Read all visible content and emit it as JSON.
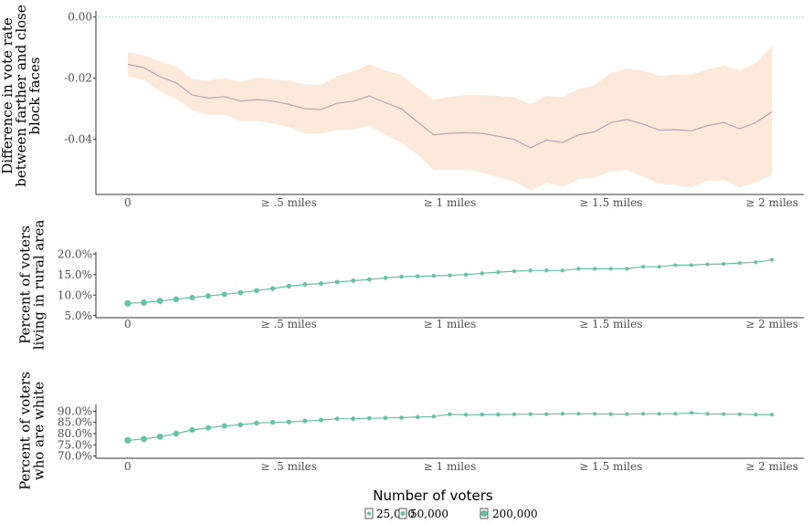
{
  "chart_data": [
    {
      "type": "area",
      "ylabel_lines": [
        "Difference in vote rate",
        "between farther and close",
        "block faces"
      ],
      "xlim": [
        0,
        40
      ],
      "ylim": [
        -0.058,
        0.002
      ],
      "y_ticks": [
        0.0,
        -0.02,
        -0.04
      ],
      "y_tick_labels": [
        "0.00",
        "-0.02",
        "-0.04"
      ],
      "x_ticks": [
        0,
        10,
        20,
        30,
        40
      ],
      "x_tick_labels": [
        "0",
        "≥ .5 miles",
        "≥ 1 miles",
        "≥ 1.5 miles",
        "≥ 2 miles"
      ],
      "reference_line": 0.0,
      "colors": {
        "line": "#b9a2b4",
        "band": "#fce9d9",
        "reference": "#8fd0c4"
      },
      "x": [
        0,
        1,
        2,
        3,
        4,
        5,
        6,
        7,
        8,
        9,
        10,
        11,
        12,
        13,
        14,
        15,
        16,
        17,
        18,
        19,
        20,
        21,
        22,
        23,
        24,
        25,
        26,
        27,
        28,
        29,
        30,
        31,
        32,
        33,
        34,
        35,
        36,
        37,
        38,
        39,
        40
      ],
      "estimate": [
        -0.0155,
        -0.0165,
        -0.0195,
        -0.0215,
        -0.0255,
        -0.0265,
        -0.026,
        -0.0275,
        -0.027,
        -0.0275,
        -0.0285,
        -0.03,
        -0.0302,
        -0.0282,
        -0.0275,
        -0.0258,
        -0.028,
        -0.03,
        -0.0343,
        -0.0385,
        -0.038,
        -0.0378,
        -0.038,
        -0.039,
        -0.04,
        -0.0428,
        -0.0402,
        -0.041,
        -0.0385,
        -0.0375,
        -0.0345,
        -0.0335,
        -0.035,
        -0.037,
        -0.0368,
        -0.0372,
        -0.0355,
        -0.0345,
        -0.0365,
        -0.0345,
        -0.031
      ],
      "lower": [
        -0.0195,
        -0.0205,
        -0.0245,
        -0.0268,
        -0.0305,
        -0.032,
        -0.0318,
        -0.034,
        -0.034,
        -0.0348,
        -0.036,
        -0.038,
        -0.0382,
        -0.037,
        -0.0368,
        -0.0355,
        -0.0385,
        -0.041,
        -0.045,
        -0.05,
        -0.05,
        -0.05,
        -0.0508,
        -0.0525,
        -0.0538,
        -0.0568,
        -0.0542,
        -0.0555,
        -0.053,
        -0.0525,
        -0.0505,
        -0.05,
        -0.0522,
        -0.0545,
        -0.055,
        -0.0558,
        -0.0535,
        -0.0532,
        -0.0558,
        -0.054,
        -0.0515
      ],
      "upper": [
        -0.0115,
        -0.0125,
        -0.0145,
        -0.0162,
        -0.0202,
        -0.0208,
        -0.0198,
        -0.0212,
        -0.0198,
        -0.0202,
        -0.0208,
        -0.022,
        -0.0222,
        -0.0192,
        -0.0178,
        -0.0155,
        -0.0175,
        -0.019,
        -0.0232,
        -0.027,
        -0.026,
        -0.0255,
        -0.0255,
        -0.0258,
        -0.0262,
        -0.0285,
        -0.0258,
        -0.0262,
        -0.0235,
        -0.0222,
        -0.0182,
        -0.0168,
        -0.0175,
        -0.0192,
        -0.0188,
        -0.0188,
        -0.0172,
        -0.0158,
        -0.0175,
        -0.015,
        -0.0095
      ]
    },
    {
      "type": "line",
      "ylabel_lines": [
        "Percent of voters",
        "living in rural area"
      ],
      "xlim": [
        0,
        40
      ],
      "ylim": [
        4.5,
        20.5
      ],
      "y_ticks": [
        5,
        10,
        15,
        20
      ],
      "y_tick_labels": [
        "5.0%",
        "10.0%",
        "15.0%",
        "20.0%"
      ],
      "x_ticks": [
        0,
        10,
        20,
        30,
        40
      ],
      "x_tick_labels": [
        "0",
        "≥ .5 miles",
        "≥ 1 miles",
        "≥ 1.5 miles",
        "≥ 2 miles"
      ],
      "colors": {
        "line": "#66c2a5"
      },
      "x": [
        0,
        1,
        2,
        3,
        4,
        5,
        6,
        7,
        8,
        9,
        10,
        11,
        12,
        13,
        14,
        15,
        16,
        17,
        18,
        19,
        20,
        21,
        22,
        23,
        24,
        25,
        26,
        27,
        28,
        29,
        30,
        31,
        32,
        33,
        34,
        35,
        36,
        37,
        38,
        39,
        40
      ],
      "values": [
        8.0,
        8.2,
        8.6,
        9.0,
        9.4,
        9.8,
        10.2,
        10.6,
        11.1,
        11.6,
        12.2,
        12.6,
        12.8,
        13.2,
        13.5,
        13.8,
        14.2,
        14.5,
        14.6,
        14.7,
        14.8,
        15.0,
        15.3,
        15.6,
        15.8,
        16.0,
        16.0,
        16.0,
        16.4,
        16.4,
        16.4,
        16.4,
        16.9,
        16.9,
        17.3,
        17.3,
        17.5,
        17.6,
        17.8,
        18.0,
        18.6
      ],
      "voters": [
        200000,
        180000,
        160000,
        140000,
        120000,
        110000,
        100000,
        90000,
        80000,
        72000,
        65000,
        60000,
        55000,
        50000,
        46000,
        43000,
        40000,
        38000,
        36000,
        34000,
        32000,
        31000,
        30000,
        29000,
        28000,
        27000,
        26000,
        25500,
        25000,
        24500,
        24000,
        23500,
        23000,
        22500,
        22000,
        21500,
        21000,
        20500,
        20000,
        19500,
        19000
      ]
    },
    {
      "type": "line",
      "ylabel_lines": [
        "Percent of voters",
        "who are white"
      ],
      "xlim": [
        0,
        40
      ],
      "ylim": [
        69,
        93
      ],
      "y_ticks": [
        70,
        75,
        80,
        85,
        90
      ],
      "y_tick_labels": [
        "70.0%",
        "75.0%",
        "80.0%",
        "85.0%",
        "90.0%"
      ],
      "x_ticks": [
        0,
        10,
        20,
        30,
        40
      ],
      "x_tick_labels": [
        "0",
        "≥ .5 miles",
        "≥ 1 miles",
        "≥ 1.5 miles",
        "≥ 2 miles"
      ],
      "colors": {
        "line": "#66c2a5"
      },
      "x": [
        0,
        1,
        2,
        3,
        4,
        5,
        6,
        7,
        8,
        9,
        10,
        11,
        12,
        13,
        14,
        15,
        16,
        17,
        18,
        19,
        20,
        21,
        22,
        23,
        24,
        25,
        26,
        27,
        28,
        29,
        30,
        31,
        32,
        33,
        34,
        35,
        36,
        37,
        38,
        39,
        40
      ],
      "values": [
        77.0,
        77.6,
        78.6,
        80.0,
        81.6,
        82.6,
        83.4,
        83.9,
        84.7,
        85.0,
        85.2,
        85.6,
        86.0,
        86.6,
        86.6,
        86.8,
        87.0,
        87.1,
        87.4,
        87.6,
        88.6,
        88.4,
        88.5,
        88.5,
        88.6,
        88.7,
        88.7,
        88.8,
        88.8,
        88.8,
        88.7,
        88.7,
        88.8,
        88.8,
        88.8,
        89.2,
        88.8,
        88.7,
        88.6,
        88.5,
        88.5
      ],
      "voters": [
        200000,
        180000,
        160000,
        140000,
        120000,
        110000,
        100000,
        90000,
        80000,
        72000,
        65000,
        60000,
        55000,
        50000,
        46000,
        43000,
        40000,
        38000,
        36000,
        34000,
        32000,
        31000,
        30000,
        29000,
        28000,
        27000,
        26000,
        25500,
        25000,
        24500,
        24000,
        23500,
        23000,
        22500,
        22000,
        21500,
        21000,
        20500,
        20000,
        19500,
        19000
      ]
    }
  ],
  "legend": {
    "title": "Number of voters",
    "items": [
      {
        "label": "25,000",
        "value": 25000
      },
      {
        "label": "50,000",
        "value": 50000
      },
      {
        "label": "200,000",
        "value": 200000
      }
    ]
  }
}
